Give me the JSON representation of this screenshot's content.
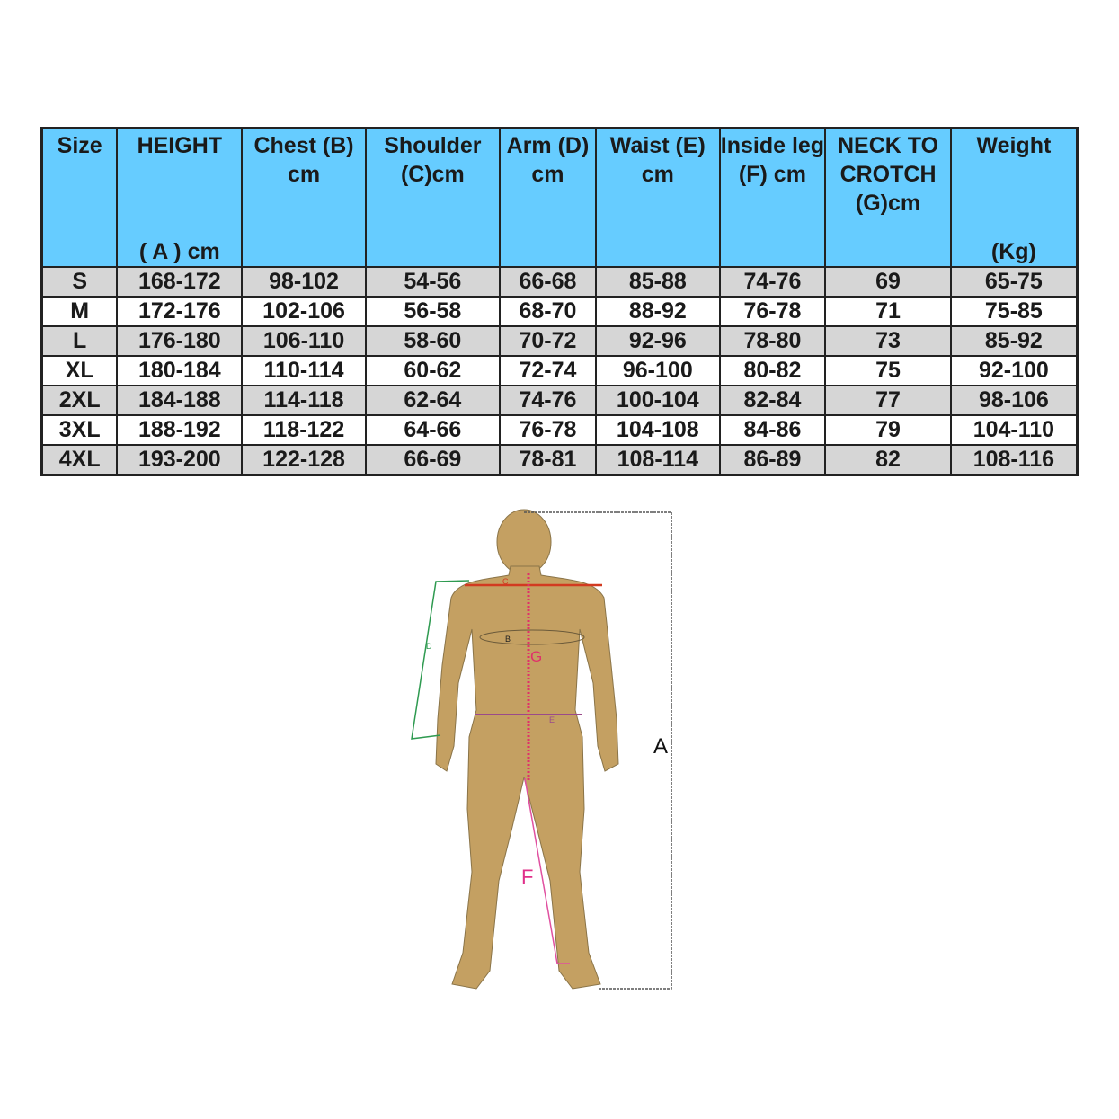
{
  "table": {
    "header_color": "#66ccff",
    "headers": [
      {
        "top": "Size",
        "bottom": ""
      },
      {
        "top": "HEIGHT",
        "bottom": "( A ) cm"
      },
      {
        "top": "Chest (B) cm",
        "bottom": ""
      },
      {
        "top": "Shoulder (C)cm",
        "bottom": ""
      },
      {
        "top": "Arm (D) cm",
        "bottom": ""
      },
      {
        "top": "Waist (E) cm",
        "bottom": ""
      },
      {
        "top": "Inside leg (F) cm",
        "bottom": ""
      },
      {
        "top": "NECK TO CROTCH (G)cm",
        "bottom": ""
      },
      {
        "top": "Weight",
        "bottom": "(Kg)"
      }
    ],
    "rows": [
      [
        "S",
        "168-172",
        "98-102",
        "54-56",
        "66-68",
        "85-88",
        "74-76",
        "69",
        "65-75"
      ],
      [
        "M",
        "172-176",
        "102-106",
        "56-58",
        "68-70",
        "88-92",
        "76-78",
        "71",
        "75-85"
      ],
      [
        "L",
        "176-180",
        "106-110",
        "58-60",
        "70-72",
        "92-96",
        "78-80",
        "73",
        "85-92"
      ],
      [
        "XL",
        "180-184",
        "110-114",
        "60-62",
        "72-74",
        "96-100",
        "80-82",
        "75",
        "92-100"
      ],
      [
        "2XL",
        "184-188",
        "114-118",
        "62-64",
        "74-76",
        "100-104",
        "82-84",
        "77",
        "98-106"
      ],
      [
        "3XL",
        "188-192",
        "118-122",
        "64-66",
        "76-78",
        "104-108",
        "84-86",
        "79",
        "104-110"
      ],
      [
        "4XL",
        "193-200",
        "122-128",
        "66-69",
        "78-81",
        "108-114",
        "86-89",
        "82",
        "108-116"
      ]
    ]
  },
  "figure": {
    "body_color": "#c4a062",
    "labels": {
      "A": "A",
      "B": "B",
      "C": "C",
      "D": "D",
      "E": "E",
      "F": "F",
      "G": "G"
    }
  }
}
